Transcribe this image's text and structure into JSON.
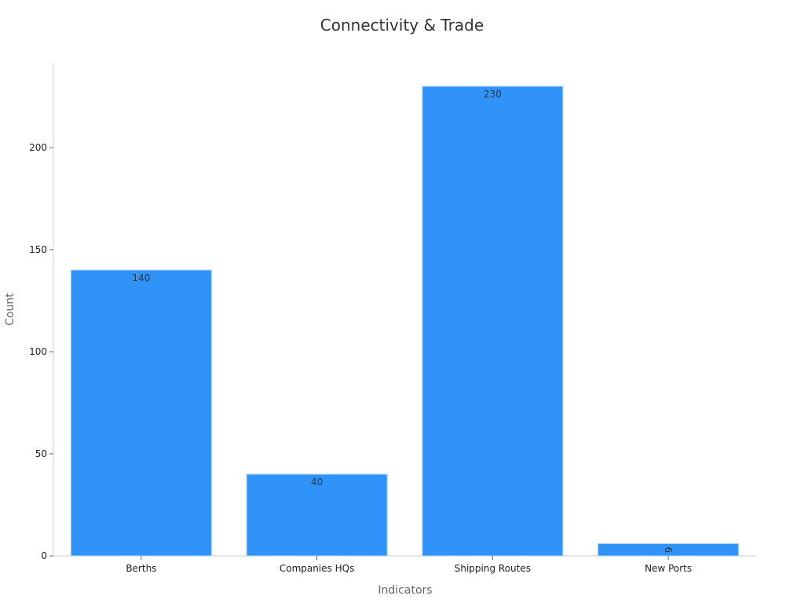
{
  "chart_data": {
    "type": "bar",
    "title": "Connectivity & Trade",
    "xlabel": "Indicators",
    "ylabel": "Count",
    "categories": [
      "Berths",
      "Companies HQs",
      "Shipping Routes",
      "New Ports"
    ],
    "values": [
      140,
      40,
      230,
      6
    ],
    "data_labels": [
      "140",
      "40",
      "230",
      "6"
    ],
    "yticks": [
      0,
      50,
      100,
      150,
      200
    ],
    "ytick_labels": [
      "0",
      "50",
      "100",
      "150",
      "200"
    ],
    "ylim": [
      0,
      241.5
    ],
    "grid": false,
    "bar_color": "#2f93f9",
    "bar_edge_color": "#a9d3fc"
  }
}
